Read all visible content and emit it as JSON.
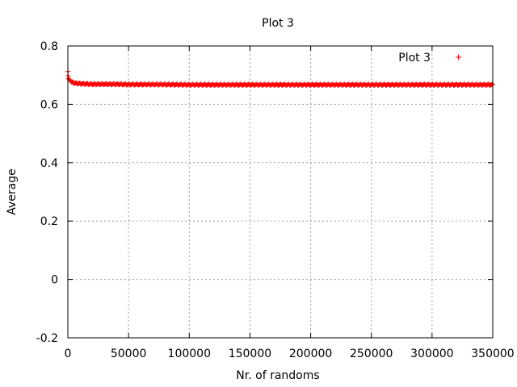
{
  "chart_data": {
    "type": "scatter",
    "title": "Plot 3",
    "xlabel": "Nr. of randoms",
    "ylabel": "Average",
    "xlim": [
      0,
      350000
    ],
    "ylim": [
      -0.2,
      0.8
    ],
    "x_ticks": [
      0,
      50000,
      100000,
      150000,
      200000,
      250000,
      300000,
      350000
    ],
    "x_tick_labels": [
      "0",
      "50000",
      "100000",
      "150000",
      "200000",
      "250000",
      "300000",
      "350000"
    ],
    "y_ticks": [
      -0.2,
      0,
      0.2,
      0.4,
      0.6,
      0.8
    ],
    "y_tick_labels": [
      "-0.2",
      "0",
      "0.2",
      "0.4",
      "0.6",
      "0.8"
    ],
    "grid": true,
    "legend_position": "top-right",
    "series": [
      {
        "name": "Plot 3",
        "color": "#ff0000",
        "marker": "plus",
        "x": [
          100,
          200,
          500,
          1000,
          1500,
          2000,
          3000,
          4000,
          5000,
          7000,
          10000,
          15000,
          20000,
          30000,
          40000,
          50000,
          75000,
          100000,
          125000,
          150000,
          175000,
          200000,
          225000,
          250000,
          275000,
          300000,
          325000,
          350000
        ],
        "y": [
          0.71,
          0.7,
          0.69,
          0.685,
          0.683,
          0.68,
          0.678,
          0.675,
          0.673,
          0.672,
          0.671,
          0.67,
          0.669,
          0.669,
          0.669,
          0.668,
          0.668,
          0.667,
          0.667,
          0.667,
          0.667,
          0.667,
          0.667,
          0.667,
          0.667,
          0.667,
          0.667,
          0.667
        ]
      }
    ]
  }
}
